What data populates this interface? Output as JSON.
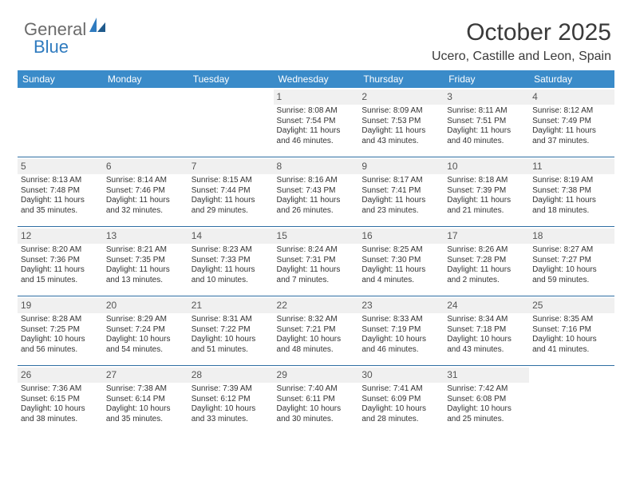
{
  "brand": {
    "part1": "General",
    "part2": "Blue"
  },
  "header": {
    "title": "October 2025",
    "location": "Ucero, Castille and Leon, Spain"
  },
  "colors": {
    "header_bg": "#3a8bc9",
    "header_text": "#ffffff",
    "daynum_bg": "#f0f0f0",
    "row_border": "#2f6fa3",
    "brand_gray": "#6b6b6b",
    "brand_blue": "#2f7bbf"
  },
  "weekdays": [
    "Sunday",
    "Monday",
    "Tuesday",
    "Wednesday",
    "Thursday",
    "Friday",
    "Saturday"
  ],
  "weeks": [
    [
      {
        "empty": true
      },
      {
        "empty": true
      },
      {
        "empty": true
      },
      {
        "day": "1",
        "sunrise": "Sunrise: 8:08 AM",
        "sunset": "Sunset: 7:54 PM",
        "daylight1": "Daylight: 11 hours",
        "daylight2": "and 46 minutes."
      },
      {
        "day": "2",
        "sunrise": "Sunrise: 8:09 AM",
        "sunset": "Sunset: 7:53 PM",
        "daylight1": "Daylight: 11 hours",
        "daylight2": "and 43 minutes."
      },
      {
        "day": "3",
        "sunrise": "Sunrise: 8:11 AM",
        "sunset": "Sunset: 7:51 PM",
        "daylight1": "Daylight: 11 hours",
        "daylight2": "and 40 minutes."
      },
      {
        "day": "4",
        "sunrise": "Sunrise: 8:12 AM",
        "sunset": "Sunset: 7:49 PM",
        "daylight1": "Daylight: 11 hours",
        "daylight2": "and 37 minutes."
      }
    ],
    [
      {
        "day": "5",
        "sunrise": "Sunrise: 8:13 AM",
        "sunset": "Sunset: 7:48 PM",
        "daylight1": "Daylight: 11 hours",
        "daylight2": "and 35 minutes."
      },
      {
        "day": "6",
        "sunrise": "Sunrise: 8:14 AM",
        "sunset": "Sunset: 7:46 PM",
        "daylight1": "Daylight: 11 hours",
        "daylight2": "and 32 minutes."
      },
      {
        "day": "7",
        "sunrise": "Sunrise: 8:15 AM",
        "sunset": "Sunset: 7:44 PM",
        "daylight1": "Daylight: 11 hours",
        "daylight2": "and 29 minutes."
      },
      {
        "day": "8",
        "sunrise": "Sunrise: 8:16 AM",
        "sunset": "Sunset: 7:43 PM",
        "daylight1": "Daylight: 11 hours",
        "daylight2": "and 26 minutes."
      },
      {
        "day": "9",
        "sunrise": "Sunrise: 8:17 AM",
        "sunset": "Sunset: 7:41 PM",
        "daylight1": "Daylight: 11 hours",
        "daylight2": "and 23 minutes."
      },
      {
        "day": "10",
        "sunrise": "Sunrise: 8:18 AM",
        "sunset": "Sunset: 7:39 PM",
        "daylight1": "Daylight: 11 hours",
        "daylight2": "and 21 minutes."
      },
      {
        "day": "11",
        "sunrise": "Sunrise: 8:19 AM",
        "sunset": "Sunset: 7:38 PM",
        "daylight1": "Daylight: 11 hours",
        "daylight2": "and 18 minutes."
      }
    ],
    [
      {
        "day": "12",
        "sunrise": "Sunrise: 8:20 AM",
        "sunset": "Sunset: 7:36 PM",
        "daylight1": "Daylight: 11 hours",
        "daylight2": "and 15 minutes."
      },
      {
        "day": "13",
        "sunrise": "Sunrise: 8:21 AM",
        "sunset": "Sunset: 7:35 PM",
        "daylight1": "Daylight: 11 hours",
        "daylight2": "and 13 minutes."
      },
      {
        "day": "14",
        "sunrise": "Sunrise: 8:23 AM",
        "sunset": "Sunset: 7:33 PM",
        "daylight1": "Daylight: 11 hours",
        "daylight2": "and 10 minutes."
      },
      {
        "day": "15",
        "sunrise": "Sunrise: 8:24 AM",
        "sunset": "Sunset: 7:31 PM",
        "daylight1": "Daylight: 11 hours",
        "daylight2": "and 7 minutes."
      },
      {
        "day": "16",
        "sunrise": "Sunrise: 8:25 AM",
        "sunset": "Sunset: 7:30 PM",
        "daylight1": "Daylight: 11 hours",
        "daylight2": "and 4 minutes."
      },
      {
        "day": "17",
        "sunrise": "Sunrise: 8:26 AM",
        "sunset": "Sunset: 7:28 PM",
        "daylight1": "Daylight: 11 hours",
        "daylight2": "and 2 minutes."
      },
      {
        "day": "18",
        "sunrise": "Sunrise: 8:27 AM",
        "sunset": "Sunset: 7:27 PM",
        "daylight1": "Daylight: 10 hours",
        "daylight2": "and 59 minutes."
      }
    ],
    [
      {
        "day": "19",
        "sunrise": "Sunrise: 8:28 AM",
        "sunset": "Sunset: 7:25 PM",
        "daylight1": "Daylight: 10 hours",
        "daylight2": "and 56 minutes."
      },
      {
        "day": "20",
        "sunrise": "Sunrise: 8:29 AM",
        "sunset": "Sunset: 7:24 PM",
        "daylight1": "Daylight: 10 hours",
        "daylight2": "and 54 minutes."
      },
      {
        "day": "21",
        "sunrise": "Sunrise: 8:31 AM",
        "sunset": "Sunset: 7:22 PM",
        "daylight1": "Daylight: 10 hours",
        "daylight2": "and 51 minutes."
      },
      {
        "day": "22",
        "sunrise": "Sunrise: 8:32 AM",
        "sunset": "Sunset: 7:21 PM",
        "daylight1": "Daylight: 10 hours",
        "daylight2": "and 48 minutes."
      },
      {
        "day": "23",
        "sunrise": "Sunrise: 8:33 AM",
        "sunset": "Sunset: 7:19 PM",
        "daylight1": "Daylight: 10 hours",
        "daylight2": "and 46 minutes."
      },
      {
        "day": "24",
        "sunrise": "Sunrise: 8:34 AM",
        "sunset": "Sunset: 7:18 PM",
        "daylight1": "Daylight: 10 hours",
        "daylight2": "and 43 minutes."
      },
      {
        "day": "25",
        "sunrise": "Sunrise: 8:35 AM",
        "sunset": "Sunset: 7:16 PM",
        "daylight1": "Daylight: 10 hours",
        "daylight2": "and 41 minutes."
      }
    ],
    [
      {
        "day": "26",
        "sunrise": "Sunrise: 7:36 AM",
        "sunset": "Sunset: 6:15 PM",
        "daylight1": "Daylight: 10 hours",
        "daylight2": "and 38 minutes."
      },
      {
        "day": "27",
        "sunrise": "Sunrise: 7:38 AM",
        "sunset": "Sunset: 6:14 PM",
        "daylight1": "Daylight: 10 hours",
        "daylight2": "and 35 minutes."
      },
      {
        "day": "28",
        "sunrise": "Sunrise: 7:39 AM",
        "sunset": "Sunset: 6:12 PM",
        "daylight1": "Daylight: 10 hours",
        "daylight2": "and 33 minutes."
      },
      {
        "day": "29",
        "sunrise": "Sunrise: 7:40 AM",
        "sunset": "Sunset: 6:11 PM",
        "daylight1": "Daylight: 10 hours",
        "daylight2": "and 30 minutes."
      },
      {
        "day": "30",
        "sunrise": "Sunrise: 7:41 AM",
        "sunset": "Sunset: 6:09 PM",
        "daylight1": "Daylight: 10 hours",
        "daylight2": "and 28 minutes."
      },
      {
        "day": "31",
        "sunrise": "Sunrise: 7:42 AM",
        "sunset": "Sunset: 6:08 PM",
        "daylight1": "Daylight: 10 hours",
        "daylight2": "and 25 minutes."
      },
      {
        "empty": true
      }
    ]
  ]
}
